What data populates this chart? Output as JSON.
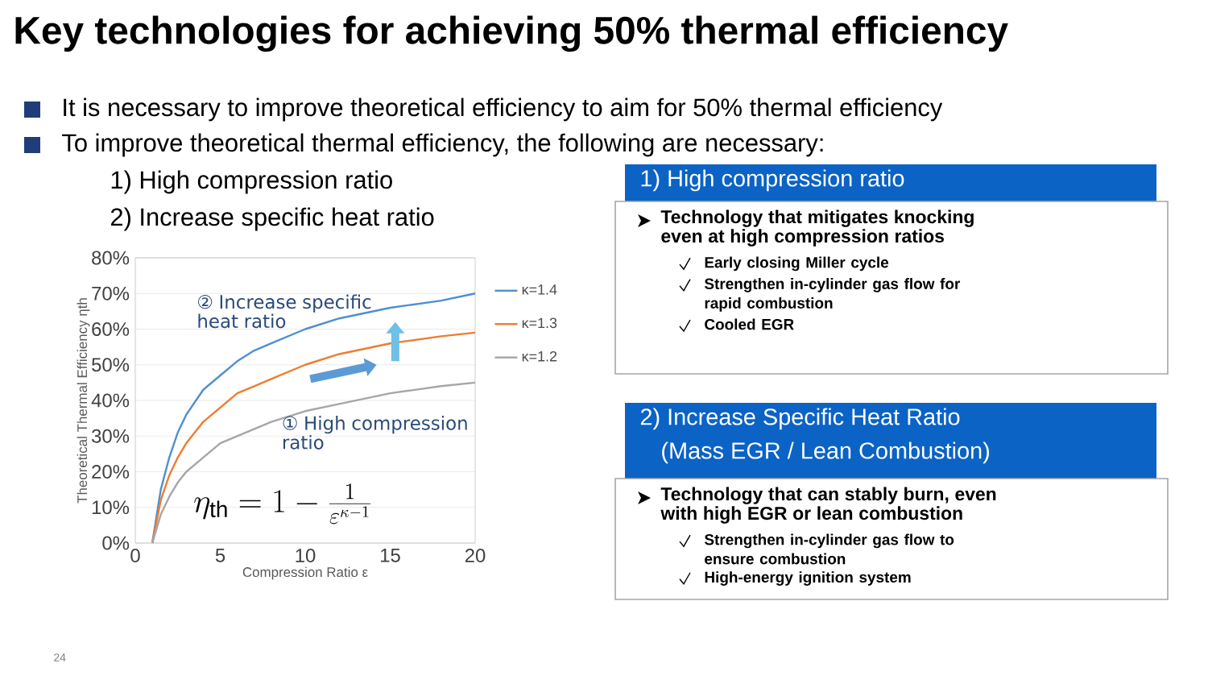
{
  "chart_data": [
    {
      "type": "other",
      "title": "Key technologies for achieving 50% thermal efficiency",
      "annotations": [
        "It is necessary to improve theoretical efficiency to aim for 50% thermal efficiency",
        "To improve theoretical thermal efficiency, the following are necessary:",
        "1) High compression ratio",
        "2) Increase specific heat ratio",
        "24"
      ]
    },
    {
      "type": "line",
      "xlabel": "Compression Ratio ε",
      "ylabel": "Theoretical Thermal Efficiency ηth",
      "xlim": [
        0,
        20
      ],
      "xticks": [
        0,
        5,
        10,
        15,
        20
      ],
      "ylim": [
        0,
        80
      ],
      "yticks": [
        {
          "value": 0,
          "label": "0%"
        },
        {
          "value": 10,
          "label": "10%"
        },
        {
          "value": 20,
          "label": "20%"
        },
        {
          "value": 30,
          "label": "30%"
        },
        {
          "value": 40,
          "label": "40%"
        },
        {
          "value": 50,
          "label": "50%"
        },
        {
          "value": 60,
          "label": "60%"
        },
        {
          "value": 70,
          "label": "70%"
        },
        {
          "value": 80,
          "label": "80%"
        }
      ],
      "grid": "y",
      "legend": "right",
      "series": [
        {
          "name": "κ=1.4",
          "color": "#4f8fd0",
          "x": [
            1,
            1.5,
            2,
            2.5,
            3,
            4,
            5,
            6,
            7,
            8,
            10,
            12,
            15,
            18,
            20
          ],
          "values": [
            0,
            15,
            24,
            31,
            36,
            43,
            47,
            51,
            54,
            56,
            60,
            63,
            66,
            68,
            70
          ]
        },
        {
          "name": "κ=1.3",
          "color": "#ed7d31",
          "x": [
            1,
            1.5,
            2,
            2.5,
            3,
            4,
            5,
            6,
            7,
            8,
            10,
            12,
            15,
            18,
            20
          ],
          "values": [
            0,
            12,
            19,
            24,
            28,
            34,
            38,
            42,
            44,
            46,
            50,
            53,
            56,
            58,
            59
          ]
        },
        {
          "name": "κ=1.2",
          "color": "#a6a6a6",
          "x": [
            1,
            1.5,
            2,
            2.5,
            3,
            4,
            5,
            6,
            7,
            8,
            10,
            12,
            15,
            18,
            20
          ],
          "values": [
            0,
            8,
            13,
            17,
            20,
            24,
            28,
            30,
            32,
            34,
            37,
            39,
            42,
            44,
            45
          ]
        }
      ],
      "annotations": [
        "② Increase specific heat ratio",
        "① High compression ratio",
        "\\eta_{\\mathrm{th}} = 1 - \\frac{1}{\\varepsilon^{\\kappa-1}}"
      ]
    },
    {
      "type": "other",
      "title": "1) High compression ratio",
      "annotations": [
        "Technology that mitigates knocking even at high compression ratios",
        "Early closing Miller cycle",
        "Strengthen in-cylinder gas flow for rapid combustion",
        "Cooled EGR"
      ]
    },
    {
      "type": "other",
      "title": "2) Increase Specific Heat Ratio",
      "subtitle": "(Mass EGR / Lean Combustion)",
      "annotations": [
        "Technology that can stably burn, even with high EGR or lean combustion",
        "Strengthen in-cylinder gas flow to ensure combustion",
        "High-energy ignition system"
      ]
    }
  ]
}
